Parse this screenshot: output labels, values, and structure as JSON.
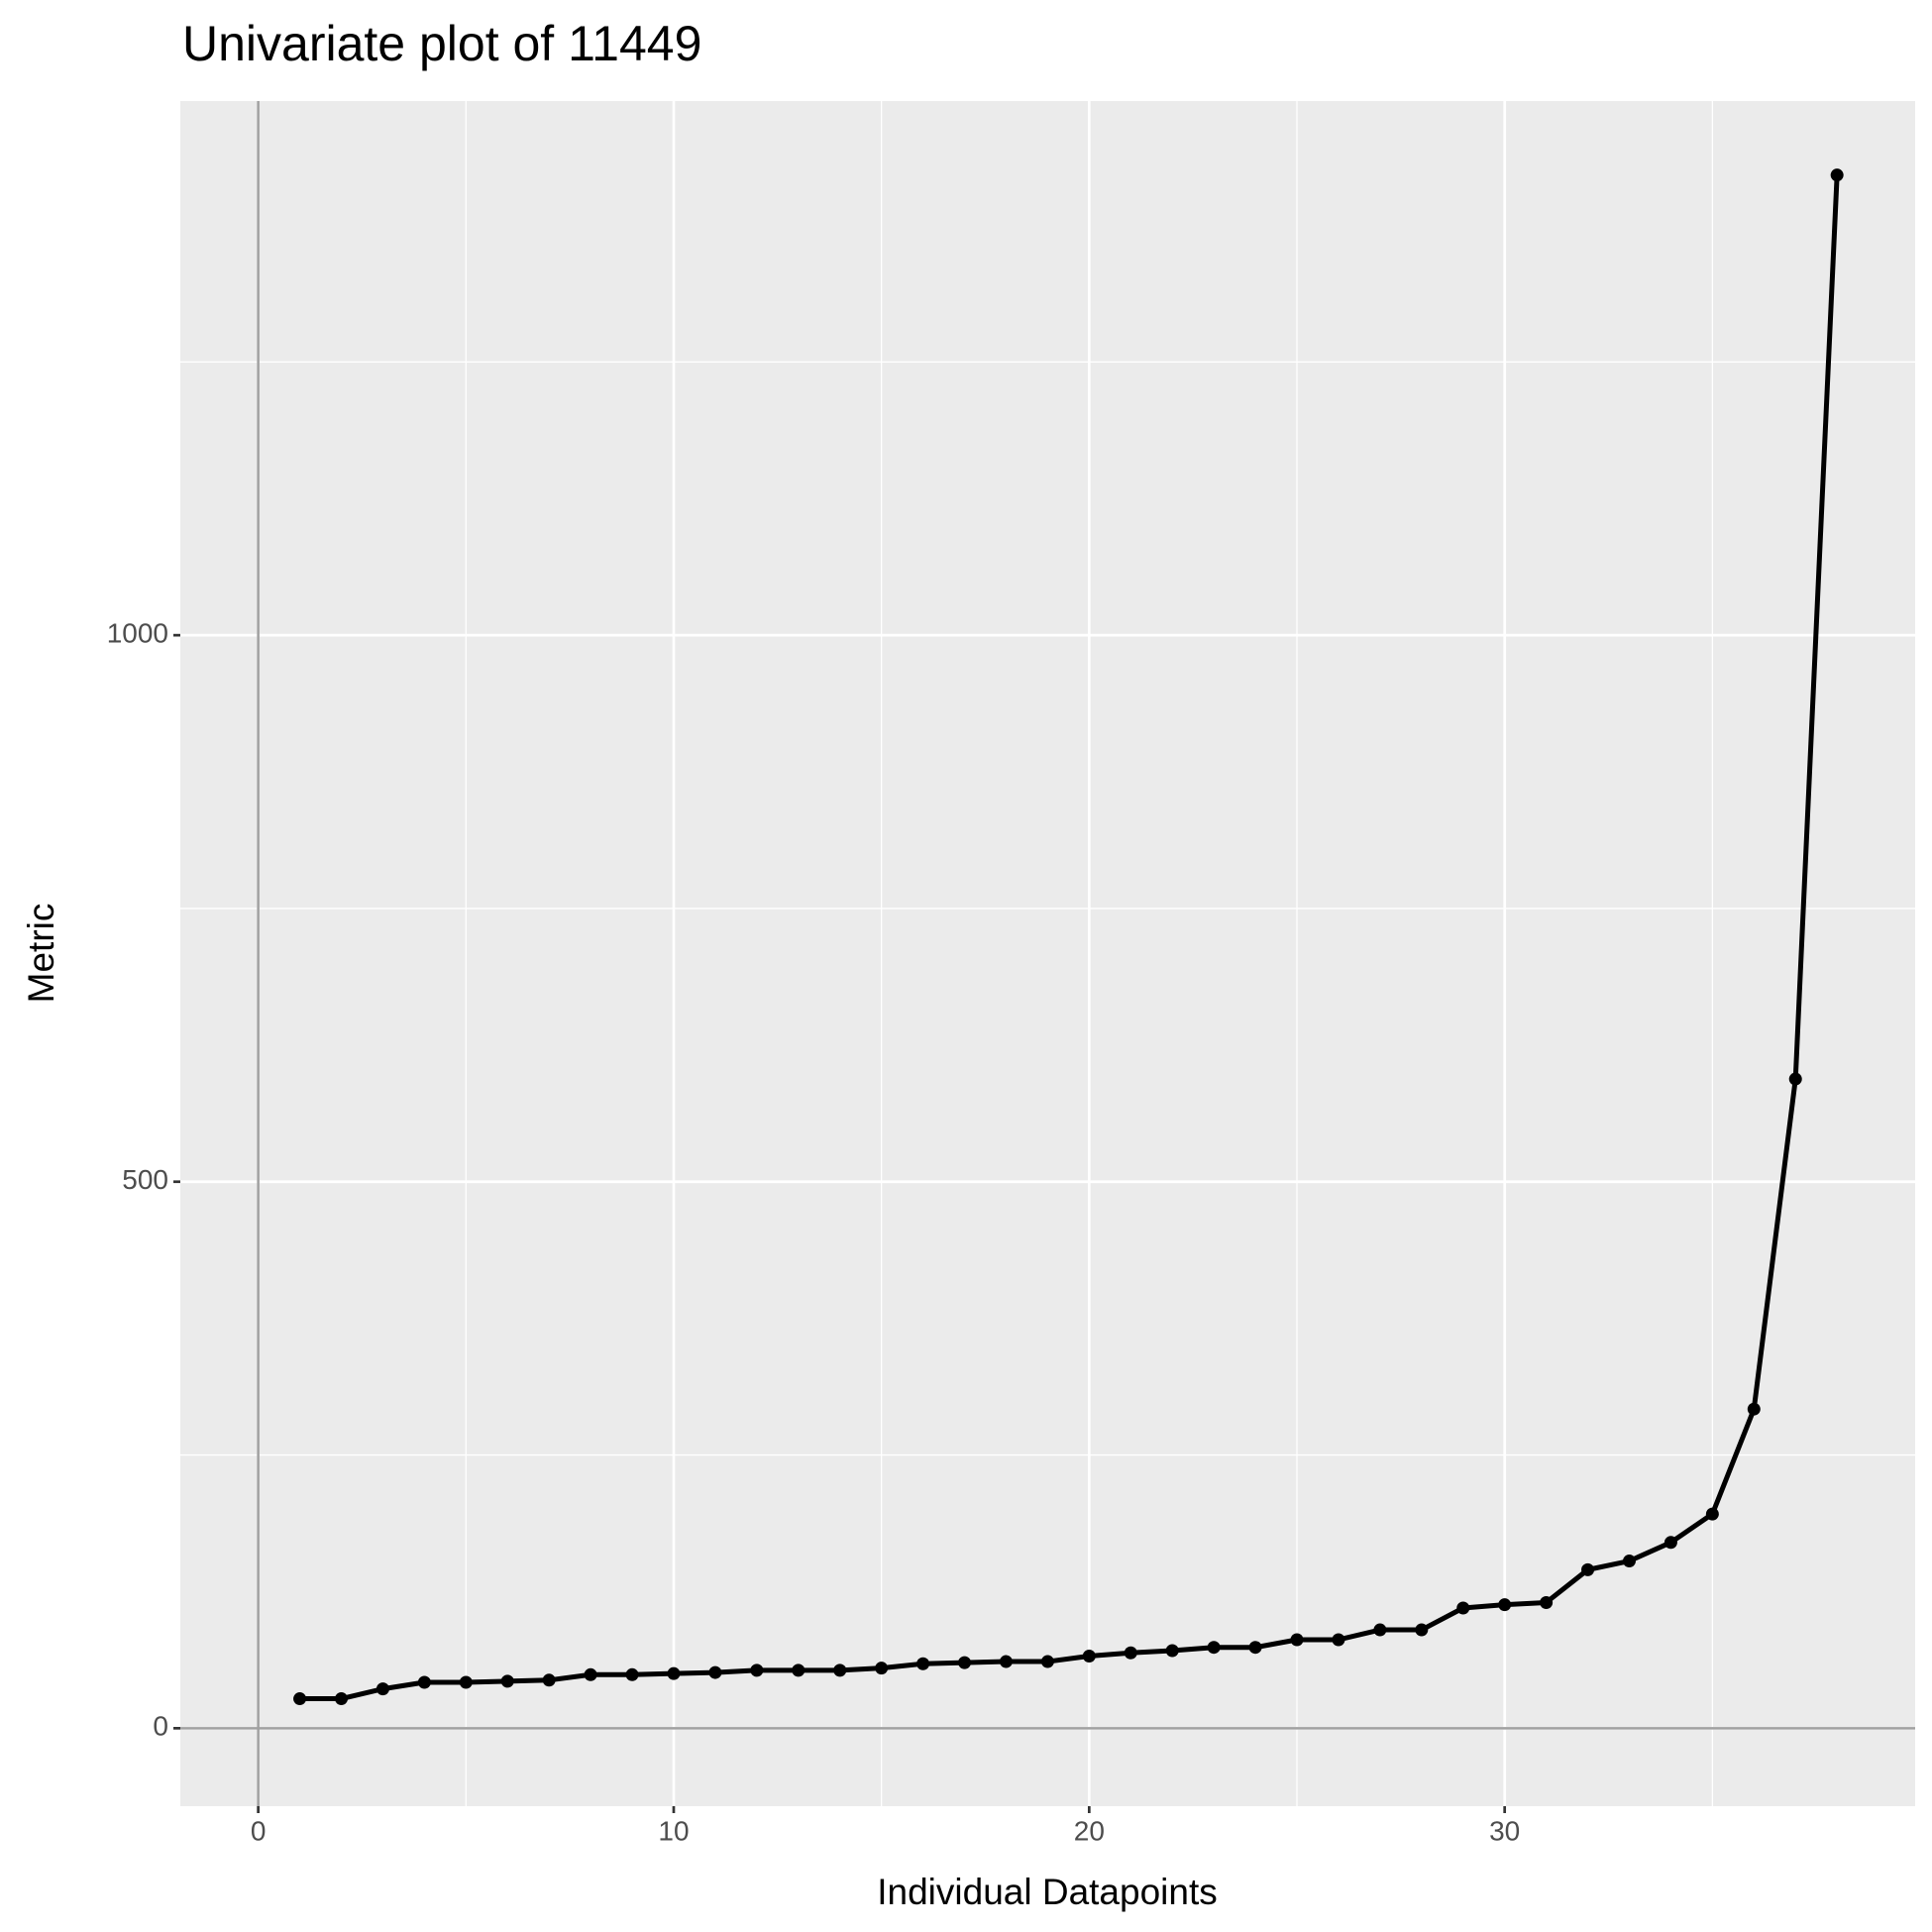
{
  "chart_data": {
    "type": "line",
    "title": "Univariate plot of 11449",
    "x_label": "Individual Datapoints",
    "y_label": "Metric",
    "x": [
      1,
      2,
      3,
      4,
      5,
      6,
      7,
      8,
      9,
      10,
      11,
      12,
      13,
      14,
      15,
      16,
      17,
      18,
      19,
      20,
      21,
      22,
      23,
      24,
      25,
      26,
      27,
      28,
      29,
      30,
      31,
      32,
      33,
      34,
      35,
      36,
      37,
      38
    ],
    "series": [
      {
        "color": "#000000",
        "values": [
          27,
          27,
          36,
          42,
          42,
          43,
          44,
          49,
          49,
          50,
          51,
          53,
          53,
          53,
          55,
          59,
          60,
          61,
          61,
          66,
          69,
          71,
          74,
          74,
          81,
          81,
          90,
          90,
          110,
          113,
          115,
          145,
          153,
          170,
          196,
          292,
          594,
          1421
        ]
      }
    ],
    "xlim": [
      -1.875,
      39.88
    ],
    "ylim": [
      -71.3,
      1488.7
    ],
    "xticks": [
      0,
      10,
      20,
      30
    ],
    "yticks": [
      0,
      500,
      1000
    ],
    "xintercept": 0,
    "yintercept": 0,
    "grid": true
  }
}
